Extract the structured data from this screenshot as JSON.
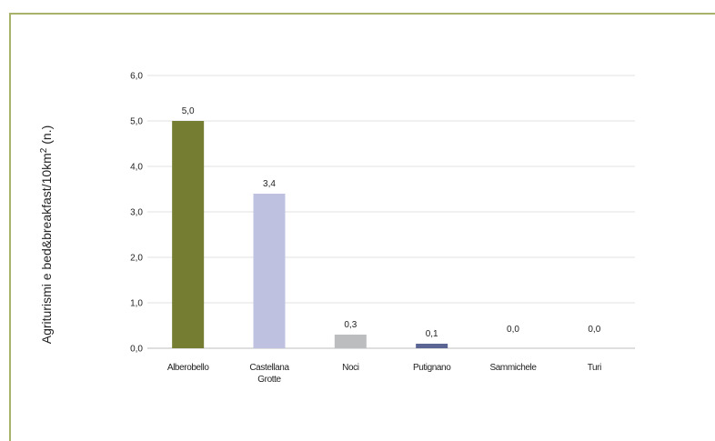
{
  "chart_data": {
    "type": "bar",
    "ylabel_main": "Agriturismi e bed&breakfast/10km",
    "ylabel_sup": "2",
    "ylabel_tail": " (n.)",
    "categories": [
      {
        "lines": [
          "Alberobello"
        ]
      },
      {
        "lines": [
          "Castellana",
          "Grotte"
        ]
      },
      {
        "lines": [
          "Noci"
        ]
      },
      {
        "lines": [
          "Putignano"
        ]
      },
      {
        "lines": [
          "Sammichele"
        ]
      },
      {
        "lines": [
          "Turi"
        ]
      }
    ],
    "values": [
      5.0,
      3.4,
      0.3,
      0.1,
      0.0,
      0.0
    ],
    "value_labels": [
      "5,0",
      "3,4",
      "0,3",
      "0,1",
      "0,0",
      "0,0"
    ],
    "bar_colors": [
      "#757d33",
      "#bfc1e1",
      "#bcbdbe",
      "#5a6594",
      "#ffffff",
      "#ffffff"
    ],
    "ylim": [
      0,
      6
    ],
    "yticks": [
      0,
      1,
      2,
      3,
      4,
      5,
      6
    ],
    "ytick_labels": [
      "0,0",
      "1,0",
      "2,0",
      "3,0",
      "4,0",
      "5,0",
      "6,0"
    ],
    "grid": true,
    "legend": "none"
  }
}
